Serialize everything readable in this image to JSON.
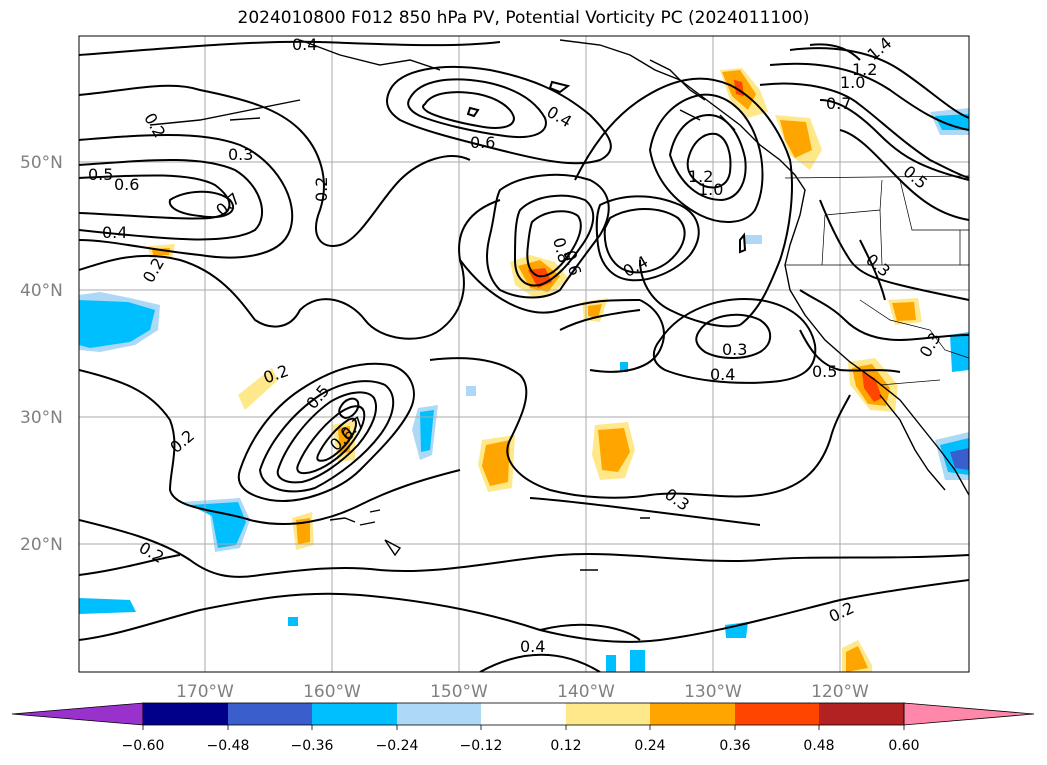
{
  "title": "2024010800 F012 850 hPa PV, Potential Vorticity PC (2024011100)",
  "lat_labels": [
    "50°N",
    "40°N",
    "30°N",
    "20°N"
  ],
  "lon_labels": [
    "170°W",
    "160°W",
    "150°W",
    "140°W",
    "130°W",
    "120°W"
  ],
  "contour_labels": [
    "0.4",
    "0.2",
    "0.3",
    "0.5",
    "0.6",
    "0.7",
    "0.4",
    "0.2",
    "0.2",
    "0.6",
    "0.4",
    "0.8",
    "0.6",
    "0.4",
    "1.2",
    "1.0",
    "1.2",
    "1.0",
    "0.7",
    "1.4",
    "0.5",
    "0.3",
    "0.3",
    "0.4",
    "0.5",
    "0.3",
    "0.2",
    "0.2",
    "0.5",
    "0.7",
    "0.6",
    "0.3",
    "0.2",
    "0.2",
    "0.4"
  ],
  "colorbar": {
    "ticks": [
      "−0.60",
      "−0.48",
      "−0.36",
      "−0.24",
      "−0.12",
      "0.12",
      "0.24",
      "0.36",
      "0.48",
      "0.60"
    ],
    "colors": [
      "#9932cc",
      "#00008b",
      "#3a5fcd",
      "#00bfff",
      "#add8f6",
      "#ffffff",
      "#ffe88a",
      "#ffa500",
      "#ff4500",
      "#b22222",
      "#ff88aa"
    ]
  }
}
